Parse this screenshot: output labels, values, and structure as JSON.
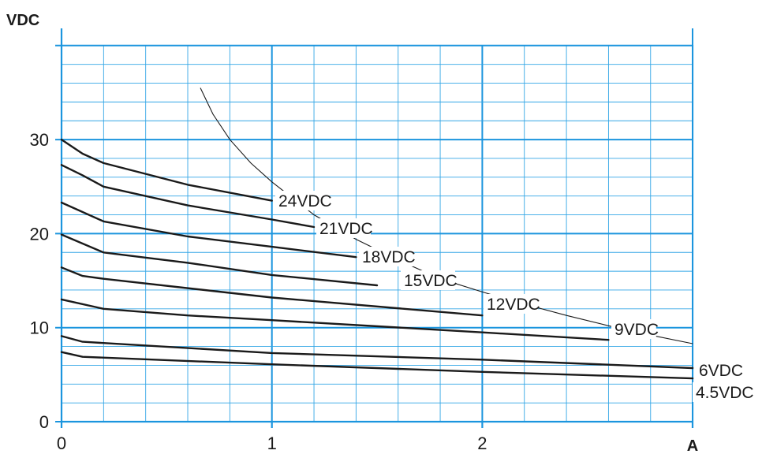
{
  "chart_data": {
    "type": "line",
    "title": "",
    "xlabel": "A",
    "ylabel": "VDC",
    "xlim": [
      0,
      3
    ],
    "ylim": [
      0,
      40
    ],
    "x_ticks": [
      {
        "value": 0,
        "label": "0"
      },
      {
        "value": 1,
        "label": "1"
      },
      {
        "value": 2,
        "label": "2"
      }
    ],
    "x_end_label": "A",
    "y_ticks": [
      {
        "value": 0,
        "label": "0"
      },
      {
        "value": 10,
        "label": "10"
      },
      {
        "value": 20,
        "label": "20"
      },
      {
        "value": 30,
        "label": "30"
      }
    ],
    "grid": true,
    "grid_minor_x_step": 0.2,
    "grid_minor_y_step": 2,
    "grid_major_x_step": 1,
    "grid_major_y_step": 10,
    "colors": {
      "grid": "#33a6e6",
      "grid_major": "#1b95de",
      "curves": "#1a1a1a",
      "background": "#ffffff"
    },
    "series": [
      {
        "name": "24VDC",
        "points": [
          [
            0,
            30
          ],
          [
            0.1,
            28.5
          ],
          [
            0.2,
            27.5
          ],
          [
            0.6,
            25.2
          ],
          [
            1.0,
            23.5
          ]
        ]
      },
      {
        "name": "21VDC",
        "points": [
          [
            0,
            27.3
          ],
          [
            0.1,
            26.2
          ],
          [
            0.2,
            25
          ],
          [
            0.6,
            23
          ],
          [
            1.0,
            21.5
          ],
          [
            1.2,
            20.7
          ]
        ]
      },
      {
        "name": "18VDC",
        "points": [
          [
            0,
            23.3
          ],
          [
            0.2,
            21.3
          ],
          [
            0.6,
            19.7
          ],
          [
            1.0,
            18.6
          ],
          [
            1.4,
            17.5
          ]
        ]
      },
      {
        "name": "15VDC",
        "points": [
          [
            0,
            19.9
          ],
          [
            0.2,
            18
          ],
          [
            0.6,
            16.9
          ],
          [
            1.0,
            15.6
          ],
          [
            1.5,
            14.5
          ]
        ]
      },
      {
        "name": "12VDC",
        "points": [
          [
            0,
            16.4
          ],
          [
            0.1,
            15.5
          ],
          [
            0.2,
            15.2
          ],
          [
            1.0,
            13.2
          ],
          [
            2.0,
            11.3
          ]
        ]
      },
      {
        "name": "9VDC",
        "points": [
          [
            0,
            13
          ],
          [
            0.2,
            12
          ],
          [
            0.6,
            11.3
          ],
          [
            1.0,
            10.8
          ],
          [
            2.0,
            9.5
          ],
          [
            2.6,
            8.7
          ]
        ]
      },
      {
        "name": "6VDC",
        "points": [
          [
            0,
            9.1
          ],
          [
            0.1,
            8.5
          ],
          [
            1.0,
            7.3
          ],
          [
            2.0,
            6.6
          ],
          [
            3.0,
            5.7
          ]
        ]
      },
      {
        "name": "4.5VDC",
        "points": [
          [
            0,
            7.4
          ],
          [
            0.1,
            6.9
          ],
          [
            1.0,
            6.1
          ],
          [
            2.0,
            5.3
          ],
          [
            3.0,
            4.6
          ]
        ]
      }
    ],
    "limit_curve": {
      "points": [
        [
          0.66,
          35.5
        ],
        [
          0.72,
          32.7
        ],
        [
          0.8,
          30.0
        ],
        [
          0.9,
          27.5
        ],
        [
          1.0,
          25.5
        ],
        [
          1.2,
          22.0
        ],
        [
          1.4,
          19.4
        ],
        [
          1.6,
          17.2
        ],
        [
          1.8,
          15.2
        ],
        [
          2.0,
          13.8
        ],
        [
          2.2,
          12.5
        ],
        [
          2.4,
          11.3
        ],
        [
          2.6,
          10.2
        ],
        [
          2.8,
          9.2
        ],
        [
          3.0,
          8.3
        ]
      ]
    }
  }
}
